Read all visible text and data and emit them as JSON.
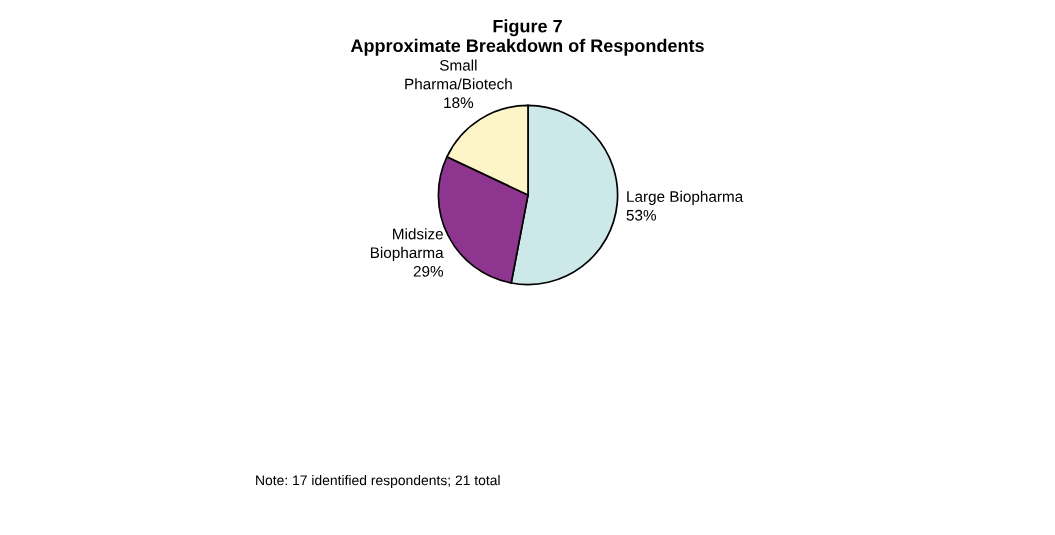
{
  "chart_data": {
    "type": "pie",
    "title": "Figure 7\nApproximate Breakdown of Respondents",
    "categories": [
      "Large Biopharma",
      "Midsize\nBiopharma",
      "Small\nPharma/Biotech"
    ],
    "values": [
      53,
      29,
      18
    ],
    "colors": [
      "#cce8e8",
      "#8e3590",
      "#fdf4c8"
    ],
    "value_labels": [
      "53%",
      "29%",
      "18%"
    ],
    "annotations": [
      "Note: 17 identified respondents; 21 total"
    ]
  }
}
